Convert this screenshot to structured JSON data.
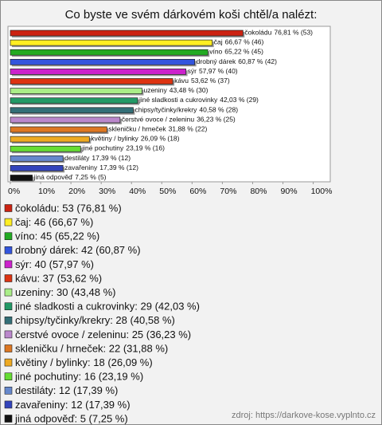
{
  "chart_data": {
    "type": "bar",
    "orientation": "horizontal",
    "title": "Co byste ve svém dárkovém koši chtěl/a nalézt:",
    "categories": [
      "čokoládu",
      "čaj",
      "víno",
      "drobný dárek",
      "sýr",
      "kávu",
      "uzeniny",
      "jiné sladkosti a cukrovinky",
      "chipsy/tyčinky/krekry",
      "čerstvé ovoce / zeleninu",
      "skleničku / hrneček",
      "květiny / bylinky",
      "jiné pochutiny",
      "destiláty",
      "zavařeniny",
      "jiná odpověď"
    ],
    "values": [
      76.81,
      66.67,
      65.22,
      60.87,
      57.97,
      53.62,
      43.48,
      42.03,
      40.58,
      36.23,
      31.88,
      26.09,
      23.19,
      17.39,
      17.39,
      7.25
    ],
    "value_labels": [
      "76,81 % (53)",
      "66,67 % (46)",
      "65,22 % (45)",
      "60,87 % (42)",
      "57,97 % (40)",
      "53,62 % (37)",
      "43,48 % (30)",
      "42,03 % (29)",
      "40,58 % (28)",
      "36,23 % (25)",
      "31,88 % (22)",
      "26,09 % (18)",
      "23,19 % (16)",
      "17,39 % (12)",
      "17,39 % (12)",
      "7,25 % (5)"
    ],
    "colors": [
      "#cc2211",
      "#ffee22",
      "#22aa22",
      "#3355dd",
      "#cc22cc",
      "#dd3311",
      "#aaee88",
      "#229966",
      "#336f77",
      "#bb88cc",
      "#dd7722",
      "#eeaa22",
      "#66dd33",
      "#6688cc",
      "#3344bb",
      "#111111"
    ],
    "legend": [
      "čokoládu: 53 (76,81 %)",
      "čaj: 46 (66,67 %)",
      "víno: 45 (65,22 %)",
      "drobný dárek: 42 (60,87 %)",
      "sýr: 40 (57,97 %)",
      "kávu: 37 (53,62 %)",
      "uzeniny: 30 (43,48 %)",
      "jiné sladkosti a cukrovinky: 29 (42,03 %)",
      "chipsy/tyčinky/krekry: 28 (40,58 %)",
      "čerstvé ovoce / zeleninu: 25 (36,23 %)",
      "skleničku / hrneček: 22 (31,88 %)",
      "květiny / bylinky: 18 (26,09 %)",
      "jiné pochutiny: 16 (23,19 %)",
      "destiláty: 12 (17,39 %)",
      "zavařeniny: 12 (17,39 %)",
      "jiná odpověď: 5 (7,25 %)"
    ],
    "xlim": [
      0,
      103
    ],
    "xticks": [
      {
        "value": 0,
        "label": "0%"
      },
      {
        "value": 10,
        "label": "10%"
      },
      {
        "value": 20,
        "label": "20%"
      },
      {
        "value": 30,
        "label": "30%"
      },
      {
        "value": 40,
        "label": "40%"
      },
      {
        "value": 50,
        "label": "50%"
      },
      {
        "value": 60,
        "label": "60%"
      },
      {
        "value": 70,
        "label": "70%"
      },
      {
        "value": 80,
        "label": "80%"
      },
      {
        "value": 90,
        "label": "90%"
      },
      {
        "value": 100,
        "label": "100%"
      }
    ],
    "source": "zdroj: https://darkove-kose.vyplnto.cz"
  }
}
